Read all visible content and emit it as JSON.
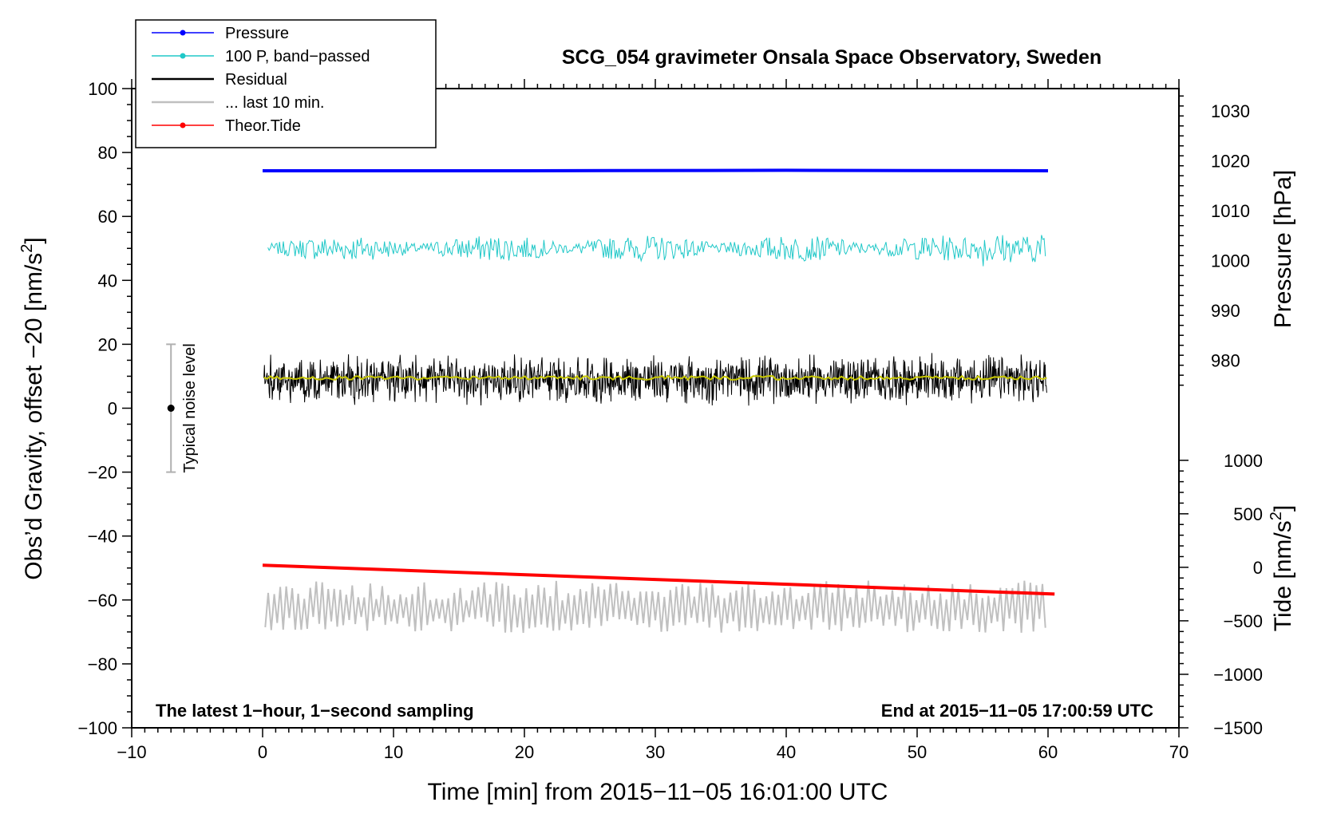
{
  "chart_data": {
    "type": "line",
    "title": "SCG_054 gravimeter Onsala Space Observatory, Sweden",
    "xlabel": "Time [min] from 2015−11−05 16:01:00 UTC",
    "ylabel_left": "Obs’d Gravity, offset −20 [nm/s",
    "ylabel_left_sup": "2",
    "ylabel_left_end": "]",
    "ylabel_right_pressure": "Pressure [hPa]",
    "ylabel_right_tide": "Tide [nm/s",
    "ylabel_right_tide_sup": "2",
    "ylabel_right_tide_end": "]",
    "xlim": [
      -10,
      70
    ],
    "ylim": [
      -100,
      100
    ],
    "x_ticks": [
      -10,
      0,
      10,
      20,
      30,
      40,
      50,
      60,
      70
    ],
    "x_tick_labels": [
      "−10",
      "0",
      "10",
      "20",
      "30",
      "40",
      "50",
      "60",
      "70"
    ],
    "y_ticks": [
      -100,
      -80,
      -60,
      -40,
      -20,
      0,
      20,
      40,
      60,
      80,
      100
    ],
    "y_tick_labels": [
      "−100",
      "−80",
      "−60",
      "−40",
      "−20",
      "0",
      "20",
      "40",
      "60",
      "80",
      "100"
    ],
    "pressure_axis": {
      "ticks": [
        980,
        990,
        1000,
        1010,
        1020,
        1030
      ],
      "tick_labels": [
        "980",
        "990",
        "1000",
        "1010",
        "1020",
        "1030"
      ],
      "mapping": {
        "p1": 980,
        "y1": 15,
        "p2": 1030,
        "y2": 93
      }
    },
    "tide_axis": {
      "ticks": [
        -1500,
        -1000,
        -500,
        0,
        500,
        1000
      ],
      "tick_labels": [
        "−1500",
        "−1000",
        "−500",
        "0",
        "500",
        "1000"
      ],
      "mapping": {
        "t1": -1500,
        "y1": -100,
        "t2": 1000,
        "y2": -16.3
      }
    },
    "series": [
      {
        "name": "Pressure",
        "color": "#0000ff",
        "unit": "hPa",
        "x": [
          0,
          20,
          40,
          60
        ],
        "values": [
          1018.0,
          1018.0,
          1018.1,
          1018.0
        ]
      },
      {
        "name": "100 P, band−passed",
        "color": "#20c8c8",
        "level": 50,
        "noise_amplitude": 4
      },
      {
        "name": "Residual",
        "color": "#000000",
        "level": 9,
        "noise_amplitude": 7
      },
      {
        "name": "running mean",
        "color": "#c8c800",
        "level": 9.5
      },
      {
        "name": "... last 10 min.",
        "color": "#c0c0c0",
        "level": -63,
        "noise_amplitude": 7
      },
      {
        "name": "Theor.Tide",
        "color": "#ff0000",
        "unit": "nm/s2",
        "x": [
          0,
          60.5
        ],
        "values": [
          20,
          -250
        ]
      }
    ],
    "noise_bar": {
      "x": -7,
      "low": -20,
      "high": 20,
      "center": 0,
      "label": "Typical noise level"
    },
    "legend": {
      "placement": "top-left",
      "entries": [
        {
          "label": "Pressure",
          "color": "#0000ff",
          "marker": true
        },
        {
          "label": "100 P, band−passed",
          "color": "#20c8c8",
          "marker": true
        },
        {
          "label": "Residual",
          "color": "#000000",
          "marker": false
        },
        {
          "label": "... last 10 min.",
          "color": "#c0c0c0",
          "marker": false
        },
        {
          "label": "Theor.Tide",
          "color": "#ff0000",
          "marker": true
        }
      ]
    },
    "annotations": {
      "bottom_left": "The latest 1−hour, 1−second sampling",
      "bottom_right": "End at 2015−11−05 17:00:59 UTC"
    }
  }
}
